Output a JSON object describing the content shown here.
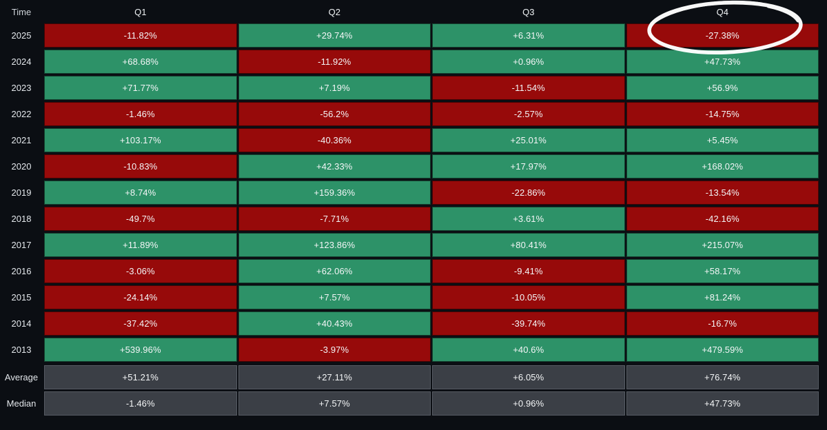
{
  "chart_data": {
    "type": "table",
    "description": "Quarterly percentage returns heatmap table by year, green positive and red negative cells",
    "corner_label": "Time",
    "columns": [
      "Q1",
      "Q2",
      "Q3",
      "Q4"
    ],
    "rows": [
      {
        "label": "2025",
        "values": [
          "-11.82%",
          "+29.74%",
          "+6.31%",
          "-27.38%"
        ]
      },
      {
        "label": "2024",
        "values": [
          "+68.68%",
          "-11.92%",
          "+0.96%",
          "+47.73%"
        ]
      },
      {
        "label": "2023",
        "values": [
          "+71.77%",
          "+7.19%",
          "-11.54%",
          "+56.9%"
        ]
      },
      {
        "label": "2022",
        "values": [
          "-1.46%",
          "-56.2%",
          "-2.57%",
          "-14.75%"
        ]
      },
      {
        "label": "2021",
        "values": [
          "+103.17%",
          "-40.36%",
          "+25.01%",
          "+5.45%"
        ]
      },
      {
        "label": "2020",
        "values": [
          "-10.83%",
          "+42.33%",
          "+17.97%",
          "+168.02%"
        ]
      },
      {
        "label": "2019",
        "values": [
          "+8.74%",
          "+159.36%",
          "-22.86%",
          "-13.54%"
        ]
      },
      {
        "label": "2018",
        "values": [
          "-49.7%",
          "-7.71%",
          "+3.61%",
          "-42.16%"
        ]
      },
      {
        "label": "2017",
        "values": [
          "+11.89%",
          "+123.86%",
          "+80.41%",
          "+215.07%"
        ]
      },
      {
        "label": "2016",
        "values": [
          "-3.06%",
          "+62.06%",
          "-9.41%",
          "+58.17%"
        ]
      },
      {
        "label": "2015",
        "values": [
          "-24.14%",
          "+7.57%",
          "-10.05%",
          "+81.24%"
        ]
      },
      {
        "label": "2014",
        "values": [
          "-37.42%",
          "+40.43%",
          "-39.74%",
          "-16.7%"
        ]
      },
      {
        "label": "2013",
        "values": [
          "+539.96%",
          "-3.97%",
          "+40.6%",
          "+479.59%"
        ]
      }
    ],
    "summary_rows": [
      {
        "label": "Average",
        "values": [
          "+51.21%",
          "+27.11%",
          "+6.05%",
          "+76.74%"
        ]
      },
      {
        "label": "Median",
        "values": [
          "-1.46%",
          "+7.57%",
          "+0.96%",
          "+47.73%"
        ]
      }
    ],
    "colors": {
      "positive_cell": "#2d9268",
      "negative_cell": "#970a0a",
      "summary_cell": "#3b3f46",
      "background": "#0b0e13",
      "annotation": "#ffffff"
    },
    "annotation": {
      "shape": "hand-drawn-ellipse",
      "highlights": "Q4 column header and 2025 Q4 value -27.38%"
    },
    "legend_position": "none",
    "grid": false
  }
}
